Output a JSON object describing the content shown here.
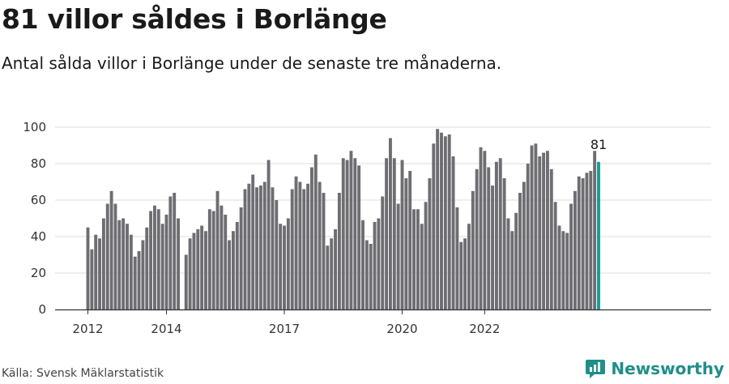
{
  "header": {
    "title": "81 villor såldes i Borlänge",
    "subtitle": "Antal sålda villor i Borlänge under de senaste tre månaderna."
  },
  "footer": {
    "source": "Källa: Svensk Mäklarstatistik",
    "brand": "Newsworthy"
  },
  "colors": {
    "bar": "#6e6d72",
    "highlight": "#1a9b95",
    "grid": "#dcdcdc",
    "axis": "#333333",
    "brand": "#1f8f8a"
  },
  "chart_data": {
    "type": "bar",
    "y_ticks": [
      0,
      20,
      40,
      60,
      80,
      100
    ],
    "ylim": [
      0,
      100
    ],
    "x_tick_labels": [
      "2012",
      "2014",
      "2017",
      "2020",
      "2022"
    ],
    "x_tick_positions": [
      0,
      20,
      50,
      80,
      101
    ],
    "values": [
      45,
      33,
      41,
      39,
      50,
      58,
      65,
      58,
      49,
      50,
      47,
      41,
      29,
      32,
      38,
      45,
      54,
      57,
      55,
      47,
      52,
      62,
      64,
      50,
      null,
      30,
      39,
      42,
      44,
      46,
      43,
      55,
      54,
      65,
      57,
      52,
      38,
      43,
      48,
      56,
      66,
      69,
      74,
      67,
      68,
      70,
      82,
      67,
      60,
      47,
      46,
      50,
      66,
      73,
      70,
      66,
      69,
      78,
      85,
      70,
      64,
      35,
      39,
      44,
      64,
      83,
      82,
      87,
      83,
      79,
      49,
      38,
      36,
      48,
      50,
      62,
      83,
      94,
      83,
      58,
      82,
      72,
      76,
      55,
      55,
      47,
      59,
      72,
      91,
      99,
      97,
      95,
      96,
      84,
      56,
      37,
      39,
      47,
      65,
      77,
      89,
      87,
      78,
      68,
      81,
      83,
      72,
      50,
      43,
      53,
      64,
      70,
      80,
      90,
      91,
      84,
      86,
      87,
      77,
      59,
      46,
      43,
      42,
      58,
      65,
      73,
      72,
      75,
      76,
      87,
      81
    ],
    "highlight_value": 81,
    "data_label": "81"
  }
}
